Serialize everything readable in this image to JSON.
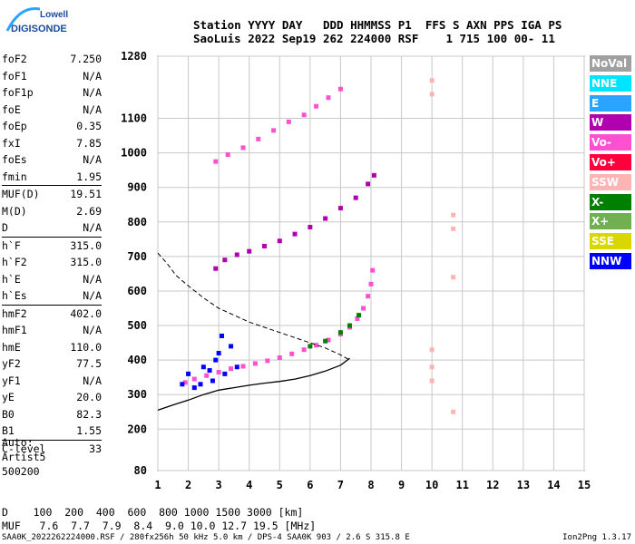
{
  "logo": {
    "line1": "Lowell",
    "line2": "DIGISONDE"
  },
  "header": {
    "line1": "Station YYYY DAY   DDD HHMMSS P1  FFS S AXN PPS IGA PS",
    "line2": "SaoLuis 2022 Sep19 262 224000 RSF    1 715 100 00- 11"
  },
  "params": [
    {
      "label": "foF2",
      "value": "7.250"
    },
    {
      "label": "foF1",
      "value": "N/A"
    },
    {
      "label": "foF1p",
      "value": "N/A"
    },
    {
      "label": "foE",
      "value": "N/A"
    },
    {
      "label": "foEp",
      "value": "0.35"
    },
    {
      "label": "fxI",
      "value": "7.85"
    },
    {
      "label": "foEs",
      "value": "N/A"
    },
    {
      "label": "fmin",
      "value": "1.95"
    },
    {
      "label": "MUF(D)",
      "value": "19.51",
      "sep": true
    },
    {
      "label": "M(D)",
      "value": "2.69"
    },
    {
      "label": "D",
      "value": "N/A"
    },
    {
      "label": "h`F",
      "value": "315.0",
      "sep": true
    },
    {
      "label": "h`F2",
      "value": "315.0"
    },
    {
      "label": "h`E",
      "value": "N/A"
    },
    {
      "label": "h`Es",
      "value": "N/A"
    },
    {
      "label": "hmF2",
      "value": "402.0",
      "sep": true
    },
    {
      "label": "hmF1",
      "value": "N/A"
    },
    {
      "label": "hmE",
      "value": "110.0"
    },
    {
      "label": "yF2",
      "value": "77.5"
    },
    {
      "label": "yF1",
      "value": "N/A"
    },
    {
      "label": "yE",
      "value": "20.0"
    },
    {
      "label": "B0",
      "value": "82.3"
    },
    {
      "label": "B1",
      "value": "1.55"
    },
    {
      "label": "C-level",
      "value": "33",
      "sep": true
    }
  ],
  "auto": {
    "line1": "Auto:",
    "line2": "Artist5",
    "line3": "500200"
  },
  "legend": [
    {
      "name": "NoVal",
      "color": "#a0a0a0"
    },
    {
      "name": "NNE",
      "color": "#00e5ff"
    },
    {
      "name": "E",
      "color": "#2aa5ff"
    },
    {
      "name": "W",
      "color": "#b000b0"
    },
    {
      "name": "Vo-",
      "color": "#ff50d2"
    },
    {
      "name": "Vo+",
      "color": "#ff003c"
    },
    {
      "name": "SSW",
      "color": "#ffb4b4"
    },
    {
      "name": "X-",
      "color": "#008000"
    },
    {
      "name": "X+",
      "color": "#70b050"
    },
    {
      "name": "SSE",
      "color": "#d8d800"
    },
    {
      "name": "NNW",
      "color": "#0000ff"
    }
  ],
  "dmuf": {
    "d_line": "D    100  200  400  600  800 1000 1500 3000 [km]",
    "muf_line": "MUF   7.6  7.7  7.9  8.4  9.0 10.0 12.7 19.5 [MHz]"
  },
  "footer": "SAA0K_2022262224000.RSF / 280fx256h 50 kHz 5.0 km / DPS-4 SAA0K 903 / 2.6 S 315.8 E",
  "version": "Ion2Png 1.3.17",
  "chart_data": {
    "type": "scatter",
    "x_ticks": [
      "1",
      "2",
      "3",
      "4",
      "5",
      "6",
      "7",
      "8",
      "9",
      "10",
      "11",
      "12",
      "13",
      "14",
      "15"
    ],
    "y_ticks": [
      "80",
      "200",
      "300",
      "400",
      "500",
      "600",
      "700",
      "800",
      "900",
      "1000",
      "1100",
      "1280"
    ],
    "xlim": [
      1,
      15
    ],
    "ylim": [
      80,
      1280
    ],
    "grid": true,
    "series": [
      {
        "name": "O-trace F2",
        "color": "#ff50d2",
        "points": [
          [
            1.9,
            335
          ],
          [
            2.2,
            345
          ],
          [
            2.6,
            355
          ],
          [
            3.0,
            365
          ],
          [
            3.4,
            375
          ],
          [
            3.8,
            382
          ],
          [
            4.2,
            390
          ],
          [
            4.6,
            398
          ],
          [
            5.0,
            407
          ],
          [
            5.4,
            418
          ],
          [
            5.8,
            430
          ],
          [
            6.2,
            443
          ],
          [
            6.6,
            458
          ],
          [
            7.0,
            475
          ],
          [
            7.3,
            495
          ],
          [
            7.55,
            520
          ],
          [
            7.75,
            550
          ],
          [
            7.9,
            585
          ],
          [
            8.0,
            620
          ],
          [
            8.05,
            660
          ]
        ]
      },
      {
        "name": "X-trace",
        "color": "#008000",
        "points": [
          [
            6.0,
            440
          ],
          [
            6.5,
            455
          ],
          [
            7.0,
            480
          ],
          [
            7.3,
            500
          ],
          [
            7.6,
            530
          ]
        ]
      },
      {
        "name": "Second hop",
        "color": "#b000b0",
        "points": [
          [
            2.9,
            665
          ],
          [
            3.2,
            690
          ],
          [
            3.6,
            705
          ],
          [
            4.0,
            715
          ],
          [
            4.5,
            730
          ],
          [
            5.0,
            745
          ],
          [
            5.5,
            765
          ],
          [
            6.0,
            785
          ],
          [
            6.5,
            810
          ],
          [
            7.0,
            840
          ],
          [
            7.5,
            870
          ],
          [
            7.9,
            910
          ],
          [
            8.1,
            935
          ]
        ]
      },
      {
        "name": "Third hop",
        "color": "#ff50d2",
        "points": [
          [
            2.9,
            975
          ],
          [
            3.3,
            995
          ],
          [
            3.8,
            1015
          ],
          [
            4.3,
            1040
          ],
          [
            4.8,
            1065
          ],
          [
            5.3,
            1090
          ],
          [
            5.8,
            1110
          ],
          [
            6.2,
            1135
          ],
          [
            6.6,
            1160
          ],
          [
            7.0,
            1185
          ]
        ]
      },
      {
        "name": "Low clutter",
        "color": "#0000ff",
        "points": [
          [
            1.8,
            330
          ],
          [
            2.0,
            360
          ],
          [
            2.2,
            320
          ],
          [
            2.5,
            380
          ],
          [
            2.8,
            340
          ],
          [
            3.0,
            420
          ],
          [
            3.2,
            360
          ],
          [
            3.4,
            440
          ],
          [
            3.1,
            470
          ],
          [
            2.9,
            400
          ],
          [
            3.6,
            380
          ],
          [
            2.4,
            330
          ],
          [
            2.7,
            370
          ]
        ]
      },
      {
        "name": "Far echoes",
        "color": "#ffb4b4",
        "points": [
          [
            10.0,
            1210
          ],
          [
            10.0,
            1170
          ],
          [
            10.0,
            430
          ],
          [
            10.0,
            380
          ],
          [
            10.0,
            340
          ],
          [
            10.7,
            820
          ],
          [
            10.7,
            780
          ],
          [
            10.7,
            640
          ],
          [
            10.7,
            250
          ]
        ]
      }
    ],
    "profile": [
      [
        7.3,
        405
      ],
      [
        7.0,
        385
      ],
      [
        6.5,
        368
      ],
      [
        6.0,
        355
      ],
      [
        5.5,
        345
      ],
      [
        5.0,
        338
      ],
      [
        4.5,
        333
      ],
      [
        4.0,
        327
      ],
      [
        3.5,
        320
      ],
      [
        3.0,
        313
      ],
      [
        2.5,
        300
      ],
      [
        2.0,
        284
      ],
      [
        1.5,
        270
      ],
      [
        1.0,
        255
      ]
    ],
    "muf_curve": [
      [
        1.0,
        710
      ],
      [
        1.3,
        680
      ],
      [
        1.6,
        645
      ],
      [
        2.0,
        615
      ],
      [
        2.5,
        580
      ],
      [
        3.0,
        550
      ],
      [
        3.5,
        530
      ],
      [
        4.0,
        510
      ],
      [
        4.5,
        495
      ],
      [
        5.0,
        480
      ],
      [
        5.5,
        465
      ],
      [
        6.0,
        450
      ],
      [
        6.5,
        435
      ],
      [
        7.0,
        415
      ],
      [
        7.3,
        400
      ]
    ]
  }
}
